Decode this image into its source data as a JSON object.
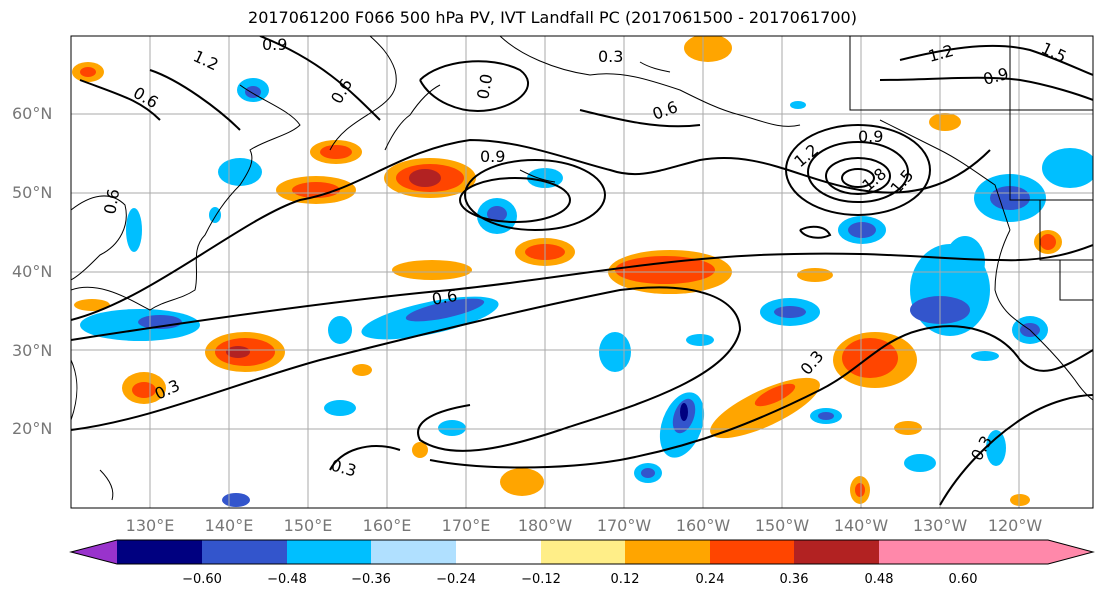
{
  "title": "2017061200 F066 500 hPa PV, IVT Landfall PC (2017061500 - 2017061700)",
  "latitude_labels": [
    "60°N",
    "50°N",
    "40°N",
    "30°N",
    "20°N"
  ],
  "longitude_labels": [
    "130°E",
    "140°E",
    "150°E",
    "160°E",
    "170°E",
    "180°W",
    "170°W",
    "160°W",
    "150°W",
    "140°W",
    "130°W",
    "120°W"
  ],
  "contour_labels": [
    "1.2",
    "0.9",
    "0.6",
    "0.6",
    "0.3",
    "0.0",
    "0.9",
    "1.2",
    "0.9",
    "1.5",
    "0.9",
    "1.2",
    "1.8",
    "1.5",
    "0.6",
    "0.3",
    "0.3",
    "0.3",
    "0.3",
    "0.6",
    "0.6"
  ],
  "colorbar": {
    "ticks": [
      "−0.60",
      "−0.48",
      "−0.36",
      "−0.24",
      "−0.12",
      "0.12",
      "0.24",
      "0.36",
      "0.48",
      "0.60"
    ],
    "colors": [
      "#9933cc",
      "#000080",
      "#3355cc",
      "#00bfff",
      "#b0e0ff",
      "#ffffff",
      "#ffee88",
      "#ffa500",
      "#ff4500",
      "#b22222",
      "#ff88aa"
    ]
  }
}
